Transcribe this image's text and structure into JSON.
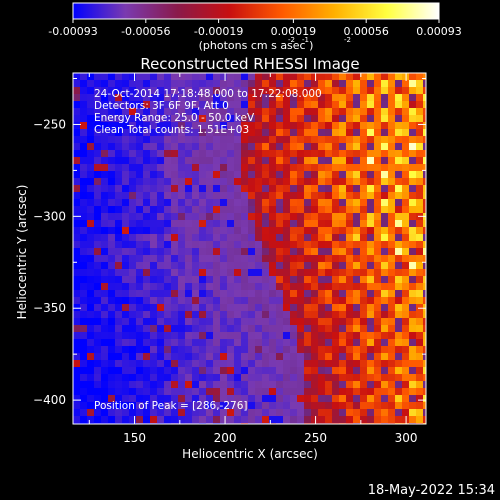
{
  "colorbar": {
    "ticks": [
      "-0.00093",
      "-0.00056",
      "-0.00019",
      "0.00019",
      "0.00056",
      "0.00093"
    ],
    "vmin": -0.00093,
    "vmax": 0.00093,
    "colormap": [
      "#0000ff",
      "#7a3ab0",
      "#8a1a4a",
      "#c81010",
      "#ff5a00",
      "#ffb000",
      "#ffff40",
      "#ffffff"
    ]
  },
  "texts": {
    "unit_label": "(photons cm  s  asec )",
    "unit_sup1": "-2",
    "unit_sup2": "-1",
    "unit_sup3": "-2",
    "title": "Reconstructed RHESSI Image",
    "info_line1": "24-Oct-2014 17:18:48.000 to 17:22:08.000",
    "info_line2": "Detectors: 3F 6F 9F, Att 0",
    "info_line3": "Energy Range: 25.0 - 50.0 keV",
    "info_line4": "Clean     Total counts: 1.51E+03",
    "peak": "Position of Peak = [286,-276]",
    "xlabel": "Heliocentric X (arcsec)",
    "ylabel": "Heliocentric Y (arcsec)",
    "footer": "18-May-2022 15:34"
  },
  "chart_data": {
    "type": "heatmap",
    "title": "Reconstructed RHESSI Image",
    "xlabel": "Heliocentric X (arcsec)",
    "ylabel": "Heliocentric Y (arcsec)",
    "xlim": [
      116,
      311
    ],
    "ylim": [
      -413,
      -222
    ],
    "xticks": [
      150,
      200,
      250,
      300
    ],
    "yticks": [
      -250,
      -300,
      -350,
      -400
    ],
    "peak": [
      286,
      -276
    ],
    "peak_value": 0.00093,
    "value_units": "photons cm^-2 s^-1 asec^-2",
    "grid": false
  }
}
